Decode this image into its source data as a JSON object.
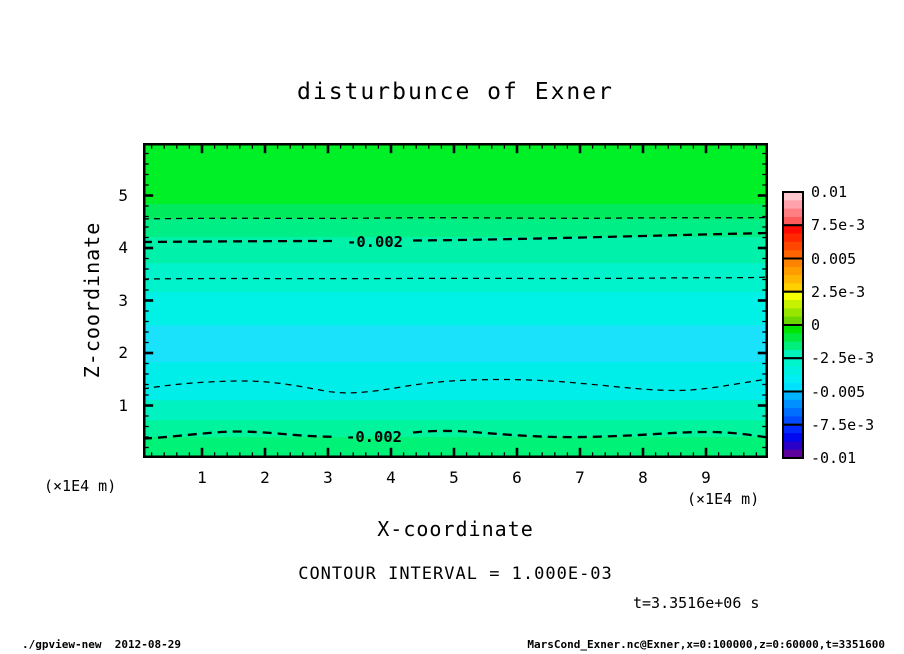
{
  "title": "disturbunce of Exner",
  "axes": {
    "x": {
      "label": "X-coordinate",
      "unit": "(×1E4 m)",
      "ticks": [
        "1",
        "2",
        "3",
        "4",
        "5",
        "6",
        "7",
        "8",
        "9"
      ]
    },
    "y": {
      "label": "Z-coordinate",
      "unit": "(×1E4 m)",
      "ticks": [
        "1",
        "2",
        "3",
        "4",
        "5"
      ]
    }
  },
  "colorbar": {
    "labels": [
      "0.01",
      "7.5e-3",
      "0.005",
      "2.5e-3",
      "0",
      "-2.5e-3",
      "-0.005",
      "-7.5e-3",
      "-0.01"
    ],
    "boxes": [
      [
        "#ffc6cd",
        "#ffa2a9",
        "#ff7e82",
        "#ff5a5c"
      ],
      [
        "#ff0a00",
        "#ff2800",
        "#ff4600",
        "#ff6400"
      ],
      [
        "#ff8200",
        "#ff9c00",
        "#ffb600",
        "#ffd000"
      ],
      [
        "#f4ff00",
        "#c6f200",
        "#98e500",
        "#6ad800"
      ],
      [
        "#00e400",
        "#00e93e",
        "#00ee7c",
        "#00f3ba"
      ],
      [
        "#00f4cc",
        "#00f1e0",
        "#00eef4",
        "#00e0ff"
      ],
      [
        "#00b2ff",
        "#0090ff",
        "#006eff",
        "#004cff"
      ],
      [
        "#002aff",
        "#0008f0",
        "#2a00c8",
        "#5c009e"
      ]
    ]
  },
  "contour_note": "CONTOUR INTERVAL = 1.000E-03",
  "time_note": "t=3.3516e+06 s",
  "footer": {
    "left": "./gpview-new  2012-08-29",
    "right": "MarsCond_Exner.nc@Exner,x=0:100000,z=0:60000,t=3351600"
  },
  "chart_data": {
    "type": "heatmap",
    "subtype": "filled-contour",
    "title": "disturbunce of Exner",
    "xlabel": "X-coordinate",
    "ylabel": "Z-coordinate",
    "x_unit": "×1E4 m",
    "z_unit": "×1E4 m",
    "x_range_m": [
      0,
      100000
    ],
    "z_range_m": [
      0,
      60000
    ],
    "x_ticks_1e4m": [
      1,
      2,
      3,
      4,
      5,
      6,
      7,
      8,
      9
    ],
    "z_ticks_1e4m": [
      1,
      2,
      3,
      4,
      5
    ],
    "time_s": 3351600,
    "contour_interval": 0.001,
    "contour_label": "-0.002",
    "colorbar_levels": [
      0.01,
      0.0075,
      0.005,
      0.0025,
      0,
      -0.0025,
      -0.005,
      -0.0075,
      -0.01
    ],
    "fill_bands": [
      {
        "z_top": 6.0,
        "z_bot": 4.84,
        "approx_value": -0.0005,
        "color": "#00f028"
      },
      {
        "z_top": 4.84,
        "z_bot": 4.55,
        "approx_value": -0.0013,
        "color": "#00ea5e"
      },
      {
        "z_top": 4.55,
        "z_bot": 4.21,
        "approx_value": -0.0018,
        "color": "#00ee86"
      },
      {
        "z_top": 4.21,
        "z_bot": 3.71,
        "approx_value": -0.0023,
        "color": "#00f2aa"
      },
      {
        "z_top": 3.71,
        "z_bot": 3.16,
        "approx_value": -0.0028,
        "color": "#00f3cb"
      },
      {
        "z_top": 3.16,
        "z_bot": 2.53,
        "approx_value": -0.0032,
        "color": "#00f1e6"
      },
      {
        "z_top": 2.53,
        "z_bot": 1.83,
        "approx_value": -0.0037,
        "color": "#1ae2fb"
      },
      {
        "z_top": 1.83,
        "z_bot": 1.1,
        "approx_value": -0.0032,
        "color": "#00eeea"
      },
      {
        "z_top": 1.1,
        "z_bot": 0.72,
        "approx_value": -0.0028,
        "color": "#00f2c0"
      },
      {
        "z_top": 0.72,
        "z_bot": 0.4,
        "approx_value": -0.0023,
        "color": "#00f49e"
      },
      {
        "z_top": 0.4,
        "z_bot": 0.0,
        "approx_value": -0.0018,
        "color": "#00f276"
      }
    ],
    "contour_lines": [
      {
        "level": -0.001,
        "approx_z_1e4m": 4.57,
        "style": "thin-dashed",
        "labeled": false
      },
      {
        "level": -0.002,
        "approx_z_1e4m": 4.14,
        "style": "thick-dashed",
        "labeled": true
      },
      {
        "level": -0.003,
        "approx_z_1e4m": 3.43,
        "style": "thin-dashed",
        "labeled": false
      },
      {
        "level": -0.003,
        "approx_z_1e4m": 1.38,
        "style": "thin-dashed",
        "labeled": false
      },
      {
        "level": -0.002,
        "approx_z_1e4m": 0.4,
        "style": "thick-dashed",
        "labeled": true
      }
    ],
    "legend_position": "right-colorbar",
    "grid": false
  }
}
